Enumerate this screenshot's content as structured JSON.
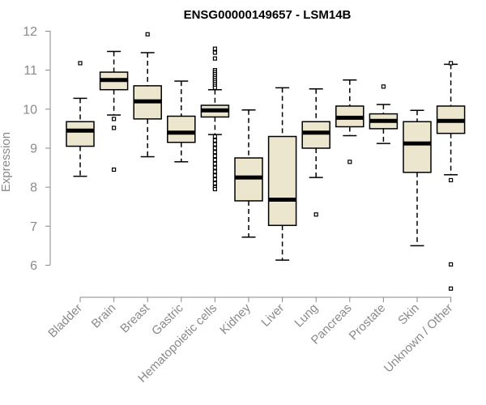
{
  "chart_data": {
    "type": "boxplot",
    "title": "ENSG00000149657 - LSM14B",
    "xlabel": "",
    "ylabel": "Expression",
    "ylim": [
      5.4,
      12.0
    ],
    "yticks": [
      6,
      7,
      8,
      9,
      10,
      11,
      12
    ],
    "box_fill": "#ede6cf",
    "categories": [
      "Bladder",
      "Brain",
      "Breast",
      "Gastric",
      "Hematopoietic cells",
      "Kidney",
      "Liver",
      "Lung",
      "Pancreas",
      "Prostate",
      "Skin",
      "Unknown / Other"
    ],
    "series": [
      {
        "name": "Bladder",
        "whisker_low": 8.28,
        "q1": 9.05,
        "median": 9.45,
        "q3": 9.68,
        "whisker_high": 10.28,
        "outliers": [
          11.18
        ]
      },
      {
        "name": "Brain",
        "whisker_low": 9.85,
        "q1": 10.5,
        "median": 10.75,
        "q3": 10.95,
        "whisker_high": 11.48,
        "outliers": [
          9.75,
          9.52,
          8.45
        ]
      },
      {
        "name": "Breast",
        "whisker_low": 8.78,
        "q1": 9.75,
        "median": 10.2,
        "q3": 10.6,
        "whisker_high": 11.45,
        "outliers": [
          11.92
        ]
      },
      {
        "name": "Gastric",
        "whisker_low": 8.65,
        "q1": 9.15,
        "median": 9.4,
        "q3": 9.82,
        "whisker_high": 10.72,
        "outliers": []
      },
      {
        "name": "Hematopoietic cells",
        "whisker_low": 9.35,
        "q1": 9.8,
        "median": 9.97,
        "q3": 10.1,
        "whisker_high": 10.5,
        "outliers": [
          11.55,
          11.45,
          11.3,
          11.0,
          10.95,
          10.9,
          10.85,
          10.8,
          10.75,
          10.7,
          10.65,
          10.6,
          10.55,
          9.3,
          9.2,
          9.1,
          9.0,
          8.9,
          8.8,
          8.7,
          8.6,
          8.5,
          8.4,
          8.3,
          8.2,
          8.1,
          8.0,
          7.95
        ]
      },
      {
        "name": "Kidney",
        "whisker_low": 6.72,
        "q1": 7.65,
        "median": 8.25,
        "q3": 8.75,
        "whisker_high": 9.98,
        "outliers": []
      },
      {
        "name": "Liver",
        "whisker_low": 6.13,
        "q1": 7.02,
        "median": 7.68,
        "q3": 9.3,
        "whisker_high": 10.55,
        "outliers": []
      },
      {
        "name": "Lung",
        "whisker_low": 8.25,
        "q1": 9.0,
        "median": 9.4,
        "q3": 9.68,
        "whisker_high": 10.52,
        "outliers": [
          7.3
        ]
      },
      {
        "name": "Pancreas",
        "whisker_low": 9.32,
        "q1": 9.55,
        "median": 9.78,
        "q3": 10.08,
        "whisker_high": 10.75,
        "outliers": [
          8.65
        ]
      },
      {
        "name": "Prostate",
        "whisker_low": 9.12,
        "q1": 9.5,
        "median": 9.7,
        "q3": 9.88,
        "whisker_high": 10.12,
        "outliers": [
          10.58
        ]
      },
      {
        "name": "Skin",
        "whisker_low": 6.5,
        "q1": 8.38,
        "median": 9.12,
        "q3": 9.68,
        "whisker_high": 9.97,
        "outliers": []
      },
      {
        "name": "Unknown / Other",
        "whisker_low": 8.32,
        "q1": 9.38,
        "median": 9.7,
        "q3": 10.08,
        "whisker_high": 11.15,
        "outliers": [
          11.18,
          8.18,
          6.02,
          5.4
        ]
      }
    ]
  }
}
